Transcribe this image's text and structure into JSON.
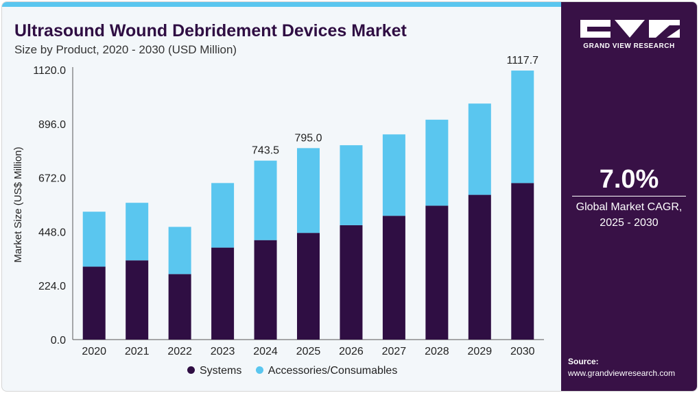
{
  "header": {
    "title": "Ultrasound Wound Debridement Devices Market",
    "subtitle": "Size by Product, 2020 - 2030 (USD Million)"
  },
  "brand": {
    "logo_icon": "gvr-logo-icon",
    "name": "GRAND VIEW RESEARCH"
  },
  "cagr": {
    "value": "7.0%",
    "label_line1": "Global Market CAGR,",
    "label_line2": "2025 - 2030"
  },
  "source": {
    "label": "Source:",
    "url": "www.grandviewresearch.com"
  },
  "colors": {
    "systems": "#2f0e43",
    "accessories": "#5ac6ef",
    "sidebar": "#381146",
    "accent": "#5ac6ef"
  },
  "chart_data": {
    "type": "bar",
    "stacked": true,
    "categories": [
      "2020",
      "2021",
      "2022",
      "2023",
      "2024",
      "2025",
      "2026",
      "2027",
      "2028",
      "2029",
      "2030"
    ],
    "series": [
      {
        "name": "Systems",
        "values": [
          303,
          329,
          272,
          382,
          413,
          443,
          475,
          514,
          556,
          601,
          650
        ]
      },
      {
        "name": "Accessories/Consumables",
        "values": [
          228,
          239,
          196,
          268,
          330,
          352,
          332,
          338,
          357,
          379,
          467
        ]
      }
    ],
    "totals_labeled": {
      "2024": "743.5",
      "2025": "795.0",
      "2030": "1117.7"
    },
    "ylabel": "Market Size (US$ Million)",
    "yticks": [
      "0.0",
      "224.0",
      "448.0",
      "672.0",
      "896.0",
      "1120.0"
    ],
    "ylim": [
      0,
      1120
    ],
    "grid": false,
    "legend_position": "bottom"
  }
}
